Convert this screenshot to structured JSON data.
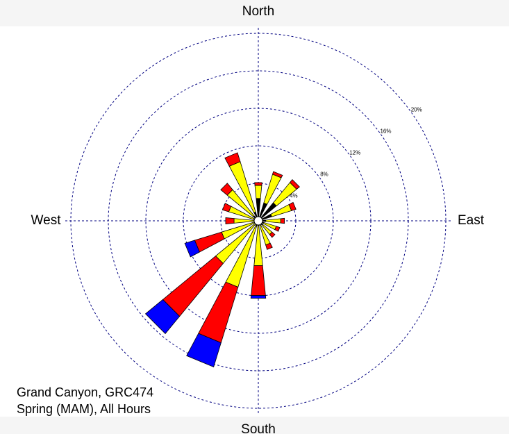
{
  "chart_data": {
    "type": "windrose",
    "categories": [
      "North",
      null,
      null,
      null,
      "East",
      null,
      null,
      null,
      "South",
      null,
      null,
      null,
      "West",
      null,
      null,
      null
    ],
    "series": [
      {
        "color": "#000000",
        "values": [
          2.4,
          2.0,
          2.5,
          1.5,
          0.8,
          0.6,
          0.6,
          0.5,
          0.5,
          0.6,
          0.4,
          0.3,
          0.3,
          0.5,
          0.7,
          1.0
        ]
      },
      {
        "color": "#ffff00",
        "values": [
          1.4,
          3.2,
          2.8,
          2.2,
          1.6,
          1.4,
          1.3,
          2.2,
          4.3,
          6.8,
          5.5,
          3.8,
          2.3,
          2.8,
          3.6,
          5.6
        ]
      },
      {
        "color": "#ff0000",
        "values": [
          0.3,
          0.3,
          0.4,
          0.5,
          0.4,
          0.4,
          0.4,
          0.5,
          3.2,
          6.2,
          7.3,
          3.0,
          0.9,
          0.7,
          0.9,
          1.0
        ]
      },
      {
        "color": "#0000ff",
        "values": [
          0,
          0,
          0,
          0,
          0,
          0,
          0,
          0,
          0.3,
          2.7,
          2.4,
          1.1,
          0,
          0,
          0,
          0
        ]
      }
    ],
    "rlim": [
      0,
      20
    ],
    "rticks": [
      {
        "value": 4,
        "label": "4%"
      },
      {
        "value": 8,
        "label": "8%"
      },
      {
        "value": 12,
        "label": "12%"
      },
      {
        "value": 16,
        "label": "16%"
      },
      {
        "value": 20,
        "label": "20%"
      }
    ],
    "grid": true,
    "annotations": [
      "Grand Canyon, GRC474",
      "Spring (MAM), All Hours"
    ]
  }
}
